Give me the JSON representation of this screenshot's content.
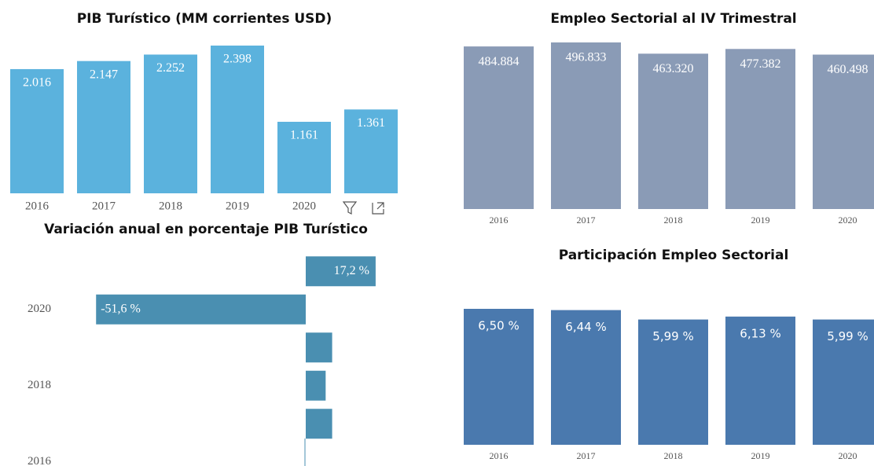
{
  "chart_data": [
    {
      "type": "bar",
      "title": "PIB Turístico (MM corrientes USD)",
      "categories": [
        "2016",
        "2017",
        "2018",
        "2019",
        "2020",
        null
      ],
      "values": [
        2016,
        2147,
        2252,
        2398,
        1161,
        1361
      ],
      "value_labels": [
        "2.016",
        "2.147",
        "2.252",
        "2.398",
        "1.161",
        "1.361"
      ],
      "color": "#5bb2dd"
    },
    {
      "type": "hbar",
      "title": "Variación anual en porcentaje PIB Turístico",
      "categories": [
        null,
        "2020",
        null,
        "2018",
        null,
        "2016"
      ],
      "values": [
        17.2,
        -51.6,
        6.5,
        4.9,
        6.5,
        0
      ],
      "value_labels": [
        "17,2 %",
        "-51,6 %",
        null,
        null,
        null,
        null
      ],
      "color": "#4a8fb1"
    },
    {
      "type": "bar",
      "title": "Empleo Sectorial al IV Trimestral",
      "categories": [
        "2016",
        "2017",
        "2018",
        "2019",
        "2020"
      ],
      "values": [
        484884,
        496833,
        463320,
        477382,
        460498
      ],
      "value_labels": [
        "484.884",
        "496.833",
        "463.320",
        "477.382",
        "460.498"
      ],
      "color": "#8a9bb6"
    },
    {
      "type": "bar",
      "title": "Participación Empleo Sectorial",
      "categories": [
        "2016",
        "2017",
        "2018",
        "2019",
        "2020"
      ],
      "values": [
        6.5,
        6.44,
        5.99,
        6.13,
        5.99
      ],
      "value_labels": [
        "6,50 %",
        "6,44 %",
        "5,99 %",
        "6,13 %",
        "5,99 %"
      ],
      "color": "#4a79ae"
    }
  ]
}
